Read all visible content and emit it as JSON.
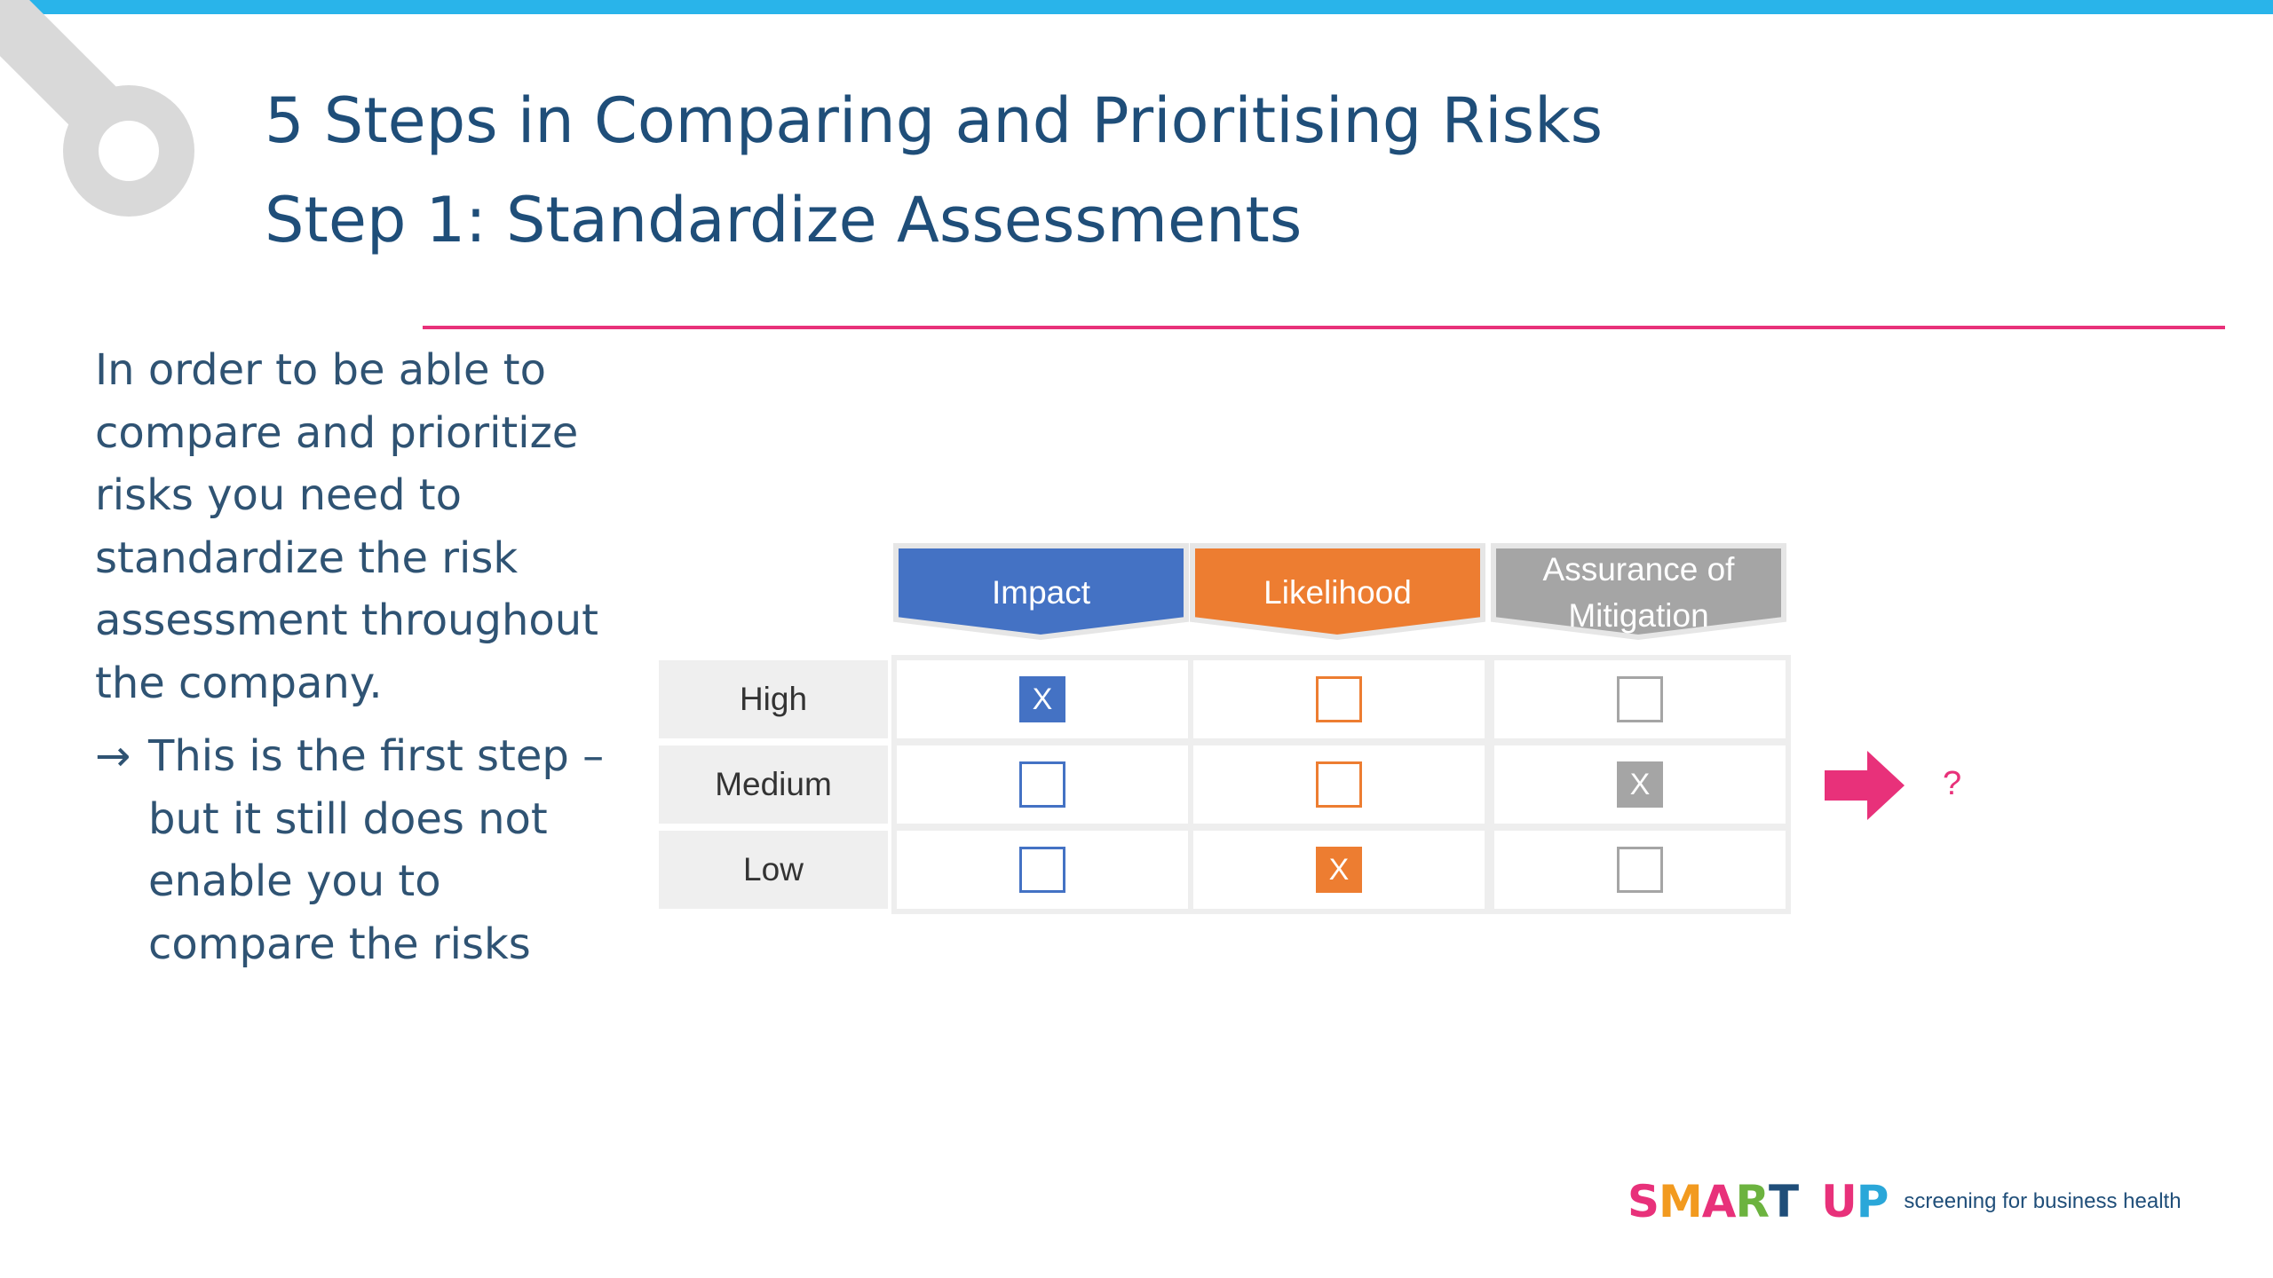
{
  "title": {
    "line1": "5 Steps in Comparing and Prioritising Risks",
    "line2": "Step 1:  Standardize Assessments"
  },
  "body": {
    "paragraph": "In order to be able to compare and prioritize risks you need to standardize the risk assessment throughout the company.",
    "arrow_glyph": "→",
    "arrow_text": "This is the first step – but it still does not enable you to compare the risks"
  },
  "matrix": {
    "columns": [
      {
        "label": "Impact",
        "color": "#4472c4"
      },
      {
        "label": "Likelihood",
        "color": "#ed7d31"
      },
      {
        "label": "Assurance of Mitigation",
        "color": "#a5a5a5"
      }
    ],
    "rows": [
      {
        "label": "High",
        "cells": [
          "X",
          "",
          ""
        ]
      },
      {
        "label": "Medium",
        "cells": [
          "",
          "",
          "X"
        ]
      },
      {
        "label": "Low",
        "cells": [
          "",
          "X",
          ""
        ]
      }
    ]
  },
  "result": "?",
  "logo": {
    "letters": [
      {
        "char": "S",
        "color": "#e8317a"
      },
      {
        "char": "M",
        "color": "#f29a1f"
      },
      {
        "char": "A",
        "color": "#e8317a"
      },
      {
        "char": "R",
        "color": "#6cb33f"
      },
      {
        "char": "T",
        "color": "#1f4e79"
      },
      {
        "char": " ",
        "color": "#ffffff"
      },
      {
        "char": "U",
        "color": "#e8317a"
      },
      {
        "char": "P",
        "color": "#2aa7d9"
      }
    ],
    "tagline": "screening for business health"
  },
  "colors": {
    "accent_bar": "#29b4ea",
    "rule": "#e8317a",
    "title": "#1f4e79",
    "arrow": "#e8317a"
  }
}
